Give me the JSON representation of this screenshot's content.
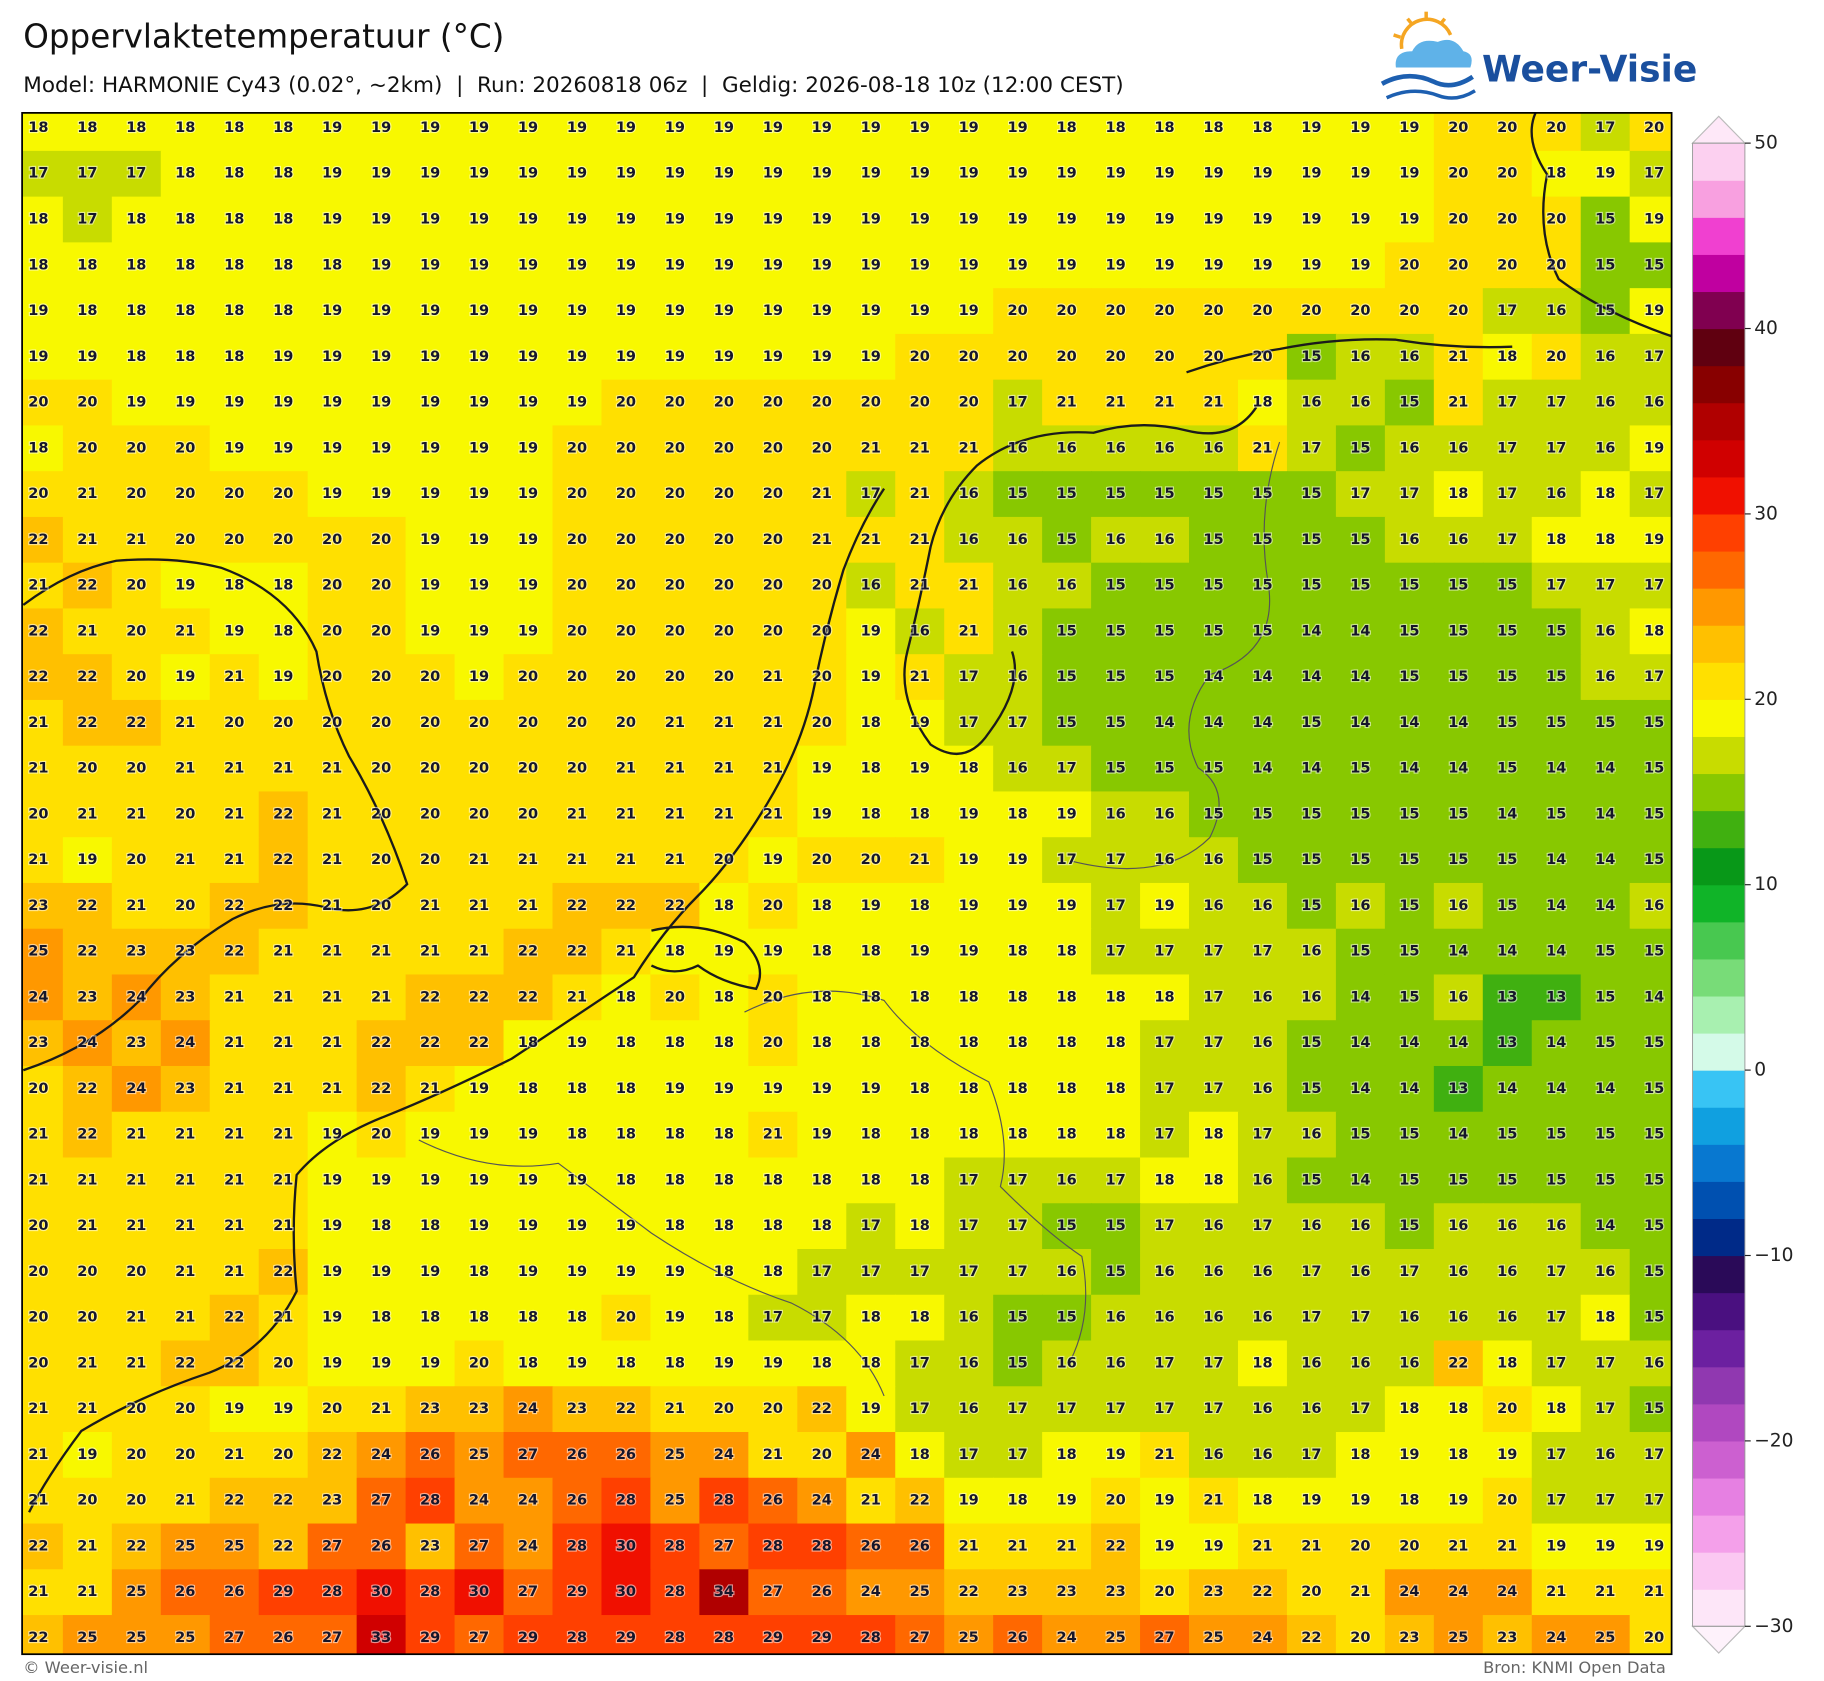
{
  "header": {
    "title": "Oppervlaktetemperatuur (°C)",
    "subtitle": "Model: HARMONIE Cy43 (0.02°, ~2km)  |  Run: 20260818 06z  |  Geldig: 2026-08-18 10z (12:00 CEST)",
    "logo": "Weer-Visie"
  },
  "map": {
    "grid": [
      [
        18,
        18,
        18,
        18,
        18,
        18,
        19,
        19,
        19,
        19,
        19,
        19,
        19,
        19,
        19,
        19,
        19,
        19,
        19,
        19,
        19,
        18,
        18,
        18,
        18,
        18,
        19,
        19,
        19,
        20,
        20,
        20,
        17,
        20
      ],
      [
        17,
        17,
        17,
        18,
        18,
        18,
        19,
        19,
        19,
        19,
        19,
        19,
        19,
        19,
        19,
        19,
        19,
        19,
        19,
        19,
        19,
        19,
        19,
        19,
        19,
        19,
        19,
        19,
        19,
        20,
        20,
        18,
        19,
        17
      ],
      [
        18,
        17,
        18,
        18,
        18,
        18,
        19,
        19,
        19,
        19,
        19,
        19,
        19,
        19,
        19,
        19,
        19,
        19,
        19,
        19,
        19,
        19,
        19,
        19,
        19,
        19,
        19,
        19,
        19,
        20,
        20,
        20,
        15,
        19
      ],
      [
        18,
        18,
        18,
        18,
        18,
        18,
        18,
        19,
        19,
        19,
        19,
        19,
        19,
        19,
        19,
        19,
        19,
        19,
        19,
        19,
        19,
        19,
        19,
        19,
        19,
        19,
        19,
        19,
        20,
        20,
        20,
        20,
        15,
        15
      ],
      [
        19,
        18,
        18,
        18,
        18,
        18,
        19,
        19,
        19,
        19,
        19,
        19,
        19,
        19,
        19,
        19,
        19,
        19,
        19,
        19,
        20,
        20,
        20,
        20,
        20,
        20,
        20,
        20,
        20,
        20,
        17,
        16,
        15,
        19
      ],
      [
        19,
        19,
        18,
        18,
        18,
        19,
        19,
        19,
        19,
        19,
        19,
        19,
        19,
        19,
        19,
        19,
        19,
        19,
        20,
        20,
        20,
        20,
        20,
        20,
        20,
        20,
        15,
        16,
        16,
        21,
        18,
        20,
        16,
        17
      ],
      [
        20,
        20,
        19,
        19,
        19,
        19,
        19,
        19,
        19,
        19,
        19,
        19,
        20,
        20,
        20,
        20,
        20,
        20,
        20,
        20,
        17,
        21,
        21,
        21,
        21,
        18,
        16,
        16,
        15,
        21,
        17,
        17,
        16,
        16
      ],
      [
        18,
        20,
        20,
        20,
        19,
        19,
        19,
        19,
        19,
        19,
        19,
        20,
        20,
        20,
        20,
        20,
        20,
        21,
        21,
        21,
        16,
        16,
        16,
        16,
        16,
        21,
        17,
        15,
        16,
        16,
        17,
        17,
        16,
        19
      ],
      [
        20,
        21,
        20,
        20,
        20,
        20,
        19,
        19,
        19,
        19,
        19,
        20,
        20,
        20,
        20,
        20,
        21,
        17,
        21,
        16,
        15,
        15,
        15,
        15,
        15,
        15,
        15,
        17,
        17,
        18,
        17,
        16,
        18,
        17
      ],
      [
        22,
        21,
        21,
        20,
        20,
        20,
        20,
        20,
        19,
        19,
        19,
        20,
        20,
        20,
        20,
        20,
        21,
        21,
        21,
        16,
        16,
        15,
        16,
        16,
        15,
        15,
        15,
        15,
        16,
        16,
        17,
        18,
        18,
        19
      ],
      [
        21,
        22,
        20,
        19,
        18,
        18,
        20,
        20,
        19,
        19,
        19,
        20,
        20,
        20,
        20,
        20,
        20,
        16,
        21,
        21,
        16,
        16,
        15,
        15,
        15,
        15,
        15,
        15,
        15,
        15,
        15,
        17,
        17,
        17
      ],
      [
        22,
        21,
        20,
        21,
        19,
        18,
        20,
        20,
        19,
        19,
        19,
        20,
        20,
        20,
        20,
        20,
        20,
        19,
        16,
        21,
        16,
        15,
        15,
        15,
        15,
        15,
        14,
        14,
        15,
        15,
        15,
        15,
        16,
        18
      ],
      [
        22,
        22,
        20,
        19,
        21,
        19,
        20,
        20,
        20,
        19,
        20,
        20,
        20,
        20,
        20,
        21,
        20,
        19,
        21,
        17,
        16,
        15,
        15,
        15,
        14,
        14,
        14,
        14,
        15,
        15,
        15,
        15,
        16,
        17
      ],
      [
        21,
        22,
        22,
        21,
        20,
        20,
        20,
        20,
        20,
        20,
        20,
        20,
        20,
        21,
        21,
        21,
        20,
        18,
        19,
        17,
        17,
        15,
        15,
        14,
        14,
        14,
        15,
        14,
        14,
        14,
        15,
        15,
        15,
        15
      ],
      [
        21,
        20,
        20,
        21,
        21,
        21,
        21,
        20,
        20,
        20,
        20,
        20,
        21,
        21,
        21,
        21,
        19,
        18,
        19,
        18,
        16,
        17,
        15,
        15,
        15,
        14,
        14,
        15,
        14,
        14,
        15,
        14,
        14,
        15
      ],
      [
        20,
        21,
        21,
        20,
        21,
        22,
        21,
        20,
        20,
        20,
        20,
        21,
        21,
        21,
        21,
        21,
        19,
        18,
        18,
        19,
        18,
        19,
        16,
        16,
        15,
        15,
        15,
        15,
        15,
        15,
        14,
        15,
        14,
        15
      ],
      [
        21,
        19,
        20,
        21,
        21,
        22,
        21,
        20,
        20,
        21,
        21,
        21,
        21,
        21,
        20,
        19,
        20,
        20,
        21,
        19,
        19,
        17,
        17,
        16,
        16,
        15,
        15,
        15,
        15,
        15,
        15,
        14,
        14,
        15
      ],
      [
        23,
        22,
        21,
        20,
        22,
        22,
        21,
        20,
        21,
        21,
        21,
        22,
        22,
        22,
        18,
        20,
        18,
        19,
        18,
        19,
        19,
        19,
        17,
        19,
        16,
        16,
        15,
        16,
        15,
        16,
        15,
        14,
        14,
        16
      ],
      [
        25,
        22,
        23,
        23,
        22,
        21,
        21,
        21,
        21,
        21,
        22,
        22,
        21,
        18,
        19,
        19,
        18,
        18,
        19,
        19,
        18,
        18,
        17,
        17,
        17,
        17,
        16,
        15,
        15,
        14,
        14,
        14,
        15,
        15
      ],
      [
        24,
        23,
        24,
        23,
        21,
        21,
        21,
        21,
        22,
        22,
        22,
        21,
        18,
        20,
        18,
        20,
        18,
        18,
        18,
        18,
        18,
        18,
        18,
        18,
        17,
        16,
        16,
        14,
        15,
        16,
        13,
        13,
        15,
        14
      ],
      [
        23,
        24,
        23,
        24,
        21,
        21,
        21,
        22,
        22,
        22,
        18,
        19,
        18,
        18,
        18,
        20,
        18,
        18,
        18,
        18,
        18,
        18,
        18,
        17,
        17,
        16,
        15,
        14,
        14,
        14,
        13,
        14,
        15,
        15
      ],
      [
        20,
        22,
        24,
        23,
        21,
        21,
        21,
        22,
        21,
        19,
        18,
        18,
        18,
        19,
        19,
        19,
        19,
        19,
        18,
        18,
        18,
        18,
        18,
        17,
        17,
        16,
        15,
        14,
        14,
        13,
        14,
        14,
        14,
        15
      ],
      [
        21,
        22,
        21,
        21,
        21,
        21,
        19,
        20,
        19,
        19,
        19,
        18,
        18,
        18,
        18,
        21,
        19,
        18,
        18,
        18,
        18,
        18,
        18,
        17,
        18,
        17,
        16,
        15,
        15,
        14,
        15,
        15,
        15,
        15
      ],
      [
        21,
        21,
        21,
        21,
        21,
        21,
        19,
        19,
        19,
        19,
        19,
        19,
        18,
        18,
        18,
        18,
        18,
        18,
        18,
        17,
        17,
        16,
        17,
        18,
        18,
        16,
        15,
        14,
        15,
        15,
        15,
        15,
        15,
        15
      ],
      [
        20,
        21,
        21,
        21,
        21,
        21,
        19,
        18,
        18,
        19,
        19,
        19,
        19,
        18,
        18,
        18,
        18,
        17,
        18,
        17,
        17,
        15,
        15,
        17,
        16,
        17,
        16,
        16,
        15,
        16,
        16,
        16,
        14,
        15
      ],
      [
        20,
        20,
        20,
        21,
        21,
        22,
        19,
        19,
        19,
        18,
        19,
        19,
        19,
        19,
        18,
        18,
        17,
        17,
        17,
        17,
        17,
        16,
        15,
        16,
        16,
        16,
        17,
        16,
        17,
        16,
        16,
        17,
        16,
        15
      ],
      [
        20,
        20,
        21,
        21,
        22,
        21,
        19,
        18,
        18,
        18,
        18,
        18,
        20,
        19,
        18,
        17,
        17,
        18,
        18,
        16,
        15,
        15,
        16,
        16,
        16,
        16,
        17,
        17,
        16,
        16,
        16,
        17,
        18,
        15
      ],
      [
        20,
        21,
        21,
        22,
        22,
        20,
        19,
        19,
        19,
        20,
        18,
        19,
        18,
        18,
        19,
        19,
        18,
        18,
        17,
        16,
        15,
        16,
        16,
        17,
        17,
        18,
        16,
        16,
        16,
        22,
        18,
        17,
        17,
        16
      ],
      [
        21,
        21,
        20,
        20,
        19,
        19,
        20,
        21,
        23,
        23,
        24,
        23,
        22,
        21,
        20,
        20,
        22,
        19,
        17,
        16,
        17,
        17,
        17,
        17,
        17,
        16,
        16,
        17,
        18,
        18,
        20,
        18,
        17,
        15
      ],
      [
        21,
        19,
        20,
        20,
        21,
        20,
        22,
        24,
        26,
        25,
        27,
        26,
        26,
        25,
        24,
        21,
        20,
        24,
        18,
        17,
        17,
        18,
        19,
        21,
        16,
        16,
        17,
        18,
        19,
        18,
        19,
        17,
        16,
        17
      ],
      [
        21,
        20,
        20,
        21,
        22,
        22,
        23,
        27,
        28,
        24,
        24,
        26,
        28,
        25,
        28,
        26,
        24,
        21,
        22,
        19,
        18,
        19,
        20,
        19,
        21,
        18,
        19,
        19,
        18,
        19,
        20,
        17,
        17,
        17
      ],
      [
        22,
        21,
        22,
        25,
        25,
        22,
        27,
        26,
        23,
        27,
        24,
        28,
        30,
        28,
        27,
        28,
        28,
        26,
        26,
        21,
        21,
        21,
        22,
        19,
        19,
        21,
        21,
        20,
        20,
        21,
        21,
        19,
        19,
        19
      ],
      [
        21,
        21,
        25,
        26,
        26,
        29,
        28,
        30,
        28,
        30,
        27,
        29,
        30,
        28,
        34,
        27,
        26,
        24,
        25,
        22,
        23,
        23,
        23,
        20,
        23,
        22,
        20,
        21,
        24,
        24,
        24,
        21,
        21,
        21
      ],
      [
        22,
        25,
        25,
        25,
        27,
        26,
        27,
        33,
        29,
        27,
        29,
        28,
        29,
        28,
        28,
        29,
        29,
        28,
        27,
        25,
        26,
        24,
        25,
        27,
        25,
        24,
        22,
        20,
        23,
        25,
        23,
        24,
        25,
        20
      ]
    ]
  },
  "colorbar": {
    "range": [
      -30,
      50
    ],
    "ticks": [
      50,
      40,
      30,
      20,
      10,
      0,
      {
        "value": -10,
        "label": "−10"
      },
      {
        "value": -20,
        "label": "−20"
      },
      {
        "value": -30,
        "label": "−30"
      }
    ],
    "colors": [
      "#fde6f8",
      "#fbc8f2",
      "#f4a0ea",
      "#e680e2",
      "#cc60d0",
      "#b048c0",
      "#9038b0",
      "#6c20a0",
      "#4a1080",
      "#2a0a58",
      "#002a88",
      "#0050b0",
      "#0878d0",
      "#10a0e0",
      "#38c4f4",
      "#d4fae8",
      "#a8f0b0",
      "#78dc78",
      "#48c850",
      "#10b428",
      "#089818",
      "#40b010",
      "#88c800",
      "#c8dc00",
      "#f8f800",
      "#ffe000",
      "#ffc000",
      "#ff9800",
      "#ff6800",
      "#ff4000",
      "#f01000",
      "#d00000",
      "#b00000",
      "#880000",
      "#600010",
      "#800050",
      "#c000a0",
      "#f040d0",
      "#f8a0e0",
      "#fcd0f0"
    ],
    "under_color": "#fef2fb",
    "over_color": "#fee8f8"
  },
  "footer": {
    "left": "© Weer-visie.nl",
    "right": "Bron: KNMI Open Data"
  }
}
